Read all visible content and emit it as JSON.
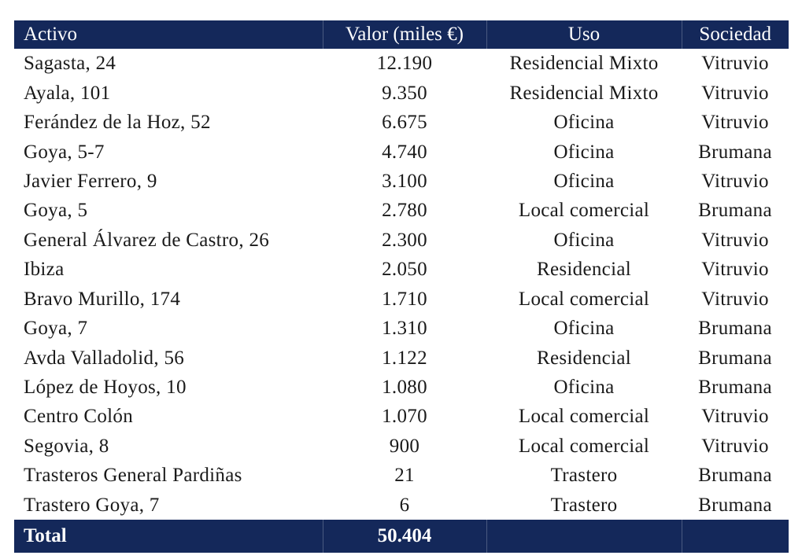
{
  "table": {
    "headers": {
      "activo": "Activo",
      "valor": "Valor (miles €)",
      "uso": "Uso",
      "sociedad": "Sociedad"
    },
    "rows": [
      {
        "activo": "Sagasta, 24",
        "valor": "12.190",
        "uso": "Residencial Mixto",
        "sociedad": "Vitruvio"
      },
      {
        "activo": "Ayala, 101",
        "valor": "9.350",
        "uso": "Residencial Mixto",
        "sociedad": "Vitruvio"
      },
      {
        "activo": "Ferández de la Hoz, 52",
        "valor": "6.675",
        "uso": "Oficina",
        "sociedad": "Vitruvio"
      },
      {
        "activo": "Goya, 5-7",
        "valor": "4.740",
        "uso": "Oficina",
        "sociedad": "Brumana"
      },
      {
        "activo": "Javier Ferrero, 9",
        "valor": "3.100",
        "uso": "Oficina",
        "sociedad": "Vitruvio"
      },
      {
        "activo": "Goya, 5",
        "valor": "2.780",
        "uso": "Local comercial",
        "sociedad": "Brumana"
      },
      {
        "activo": "General Álvarez de Castro, 26",
        "valor": "2.300",
        "uso": "Oficina",
        "sociedad": "Vitruvio"
      },
      {
        "activo": "Ibiza",
        "valor": "2.050",
        "uso": "Residencial",
        "sociedad": "Vitruvio"
      },
      {
        "activo": "Bravo Murillo, 174",
        "valor": "1.710",
        "uso": "Local comercial",
        "sociedad": "Vitruvio"
      },
      {
        "activo": "Goya, 7",
        "valor": "1.310",
        "uso": "Oficina",
        "sociedad": "Brumana"
      },
      {
        "activo": "Avda Valladolid, 56",
        "valor": "1.122",
        "uso": "Residencial",
        "sociedad": "Brumana"
      },
      {
        "activo": "López de Hoyos, 10",
        "valor": "1.080",
        "uso": "Oficina",
        "sociedad": "Brumana"
      },
      {
        "activo": "Centro Colón",
        "valor": "1.070",
        "uso": "Local comercial",
        "sociedad": "Vitruvio"
      },
      {
        "activo": "Segovia, 8",
        "valor": "900",
        "uso": "Local comercial",
        "sociedad": "Vitruvio"
      },
      {
        "activo": "Trasteros General Pardiñas",
        "valor": "21",
        "uso": "Trastero",
        "sociedad": "Brumana"
      },
      {
        "activo": "Trastero Goya, 7",
        "valor": "6",
        "uso": "Trastero",
        "sociedad": "Brumana"
      }
    ],
    "total": {
      "label": "Total",
      "valor": "50.404"
    }
  },
  "colors": {
    "header_bg": "#14285a",
    "header_text": "#ffffff",
    "body_text": "#1a1a1a"
  }
}
